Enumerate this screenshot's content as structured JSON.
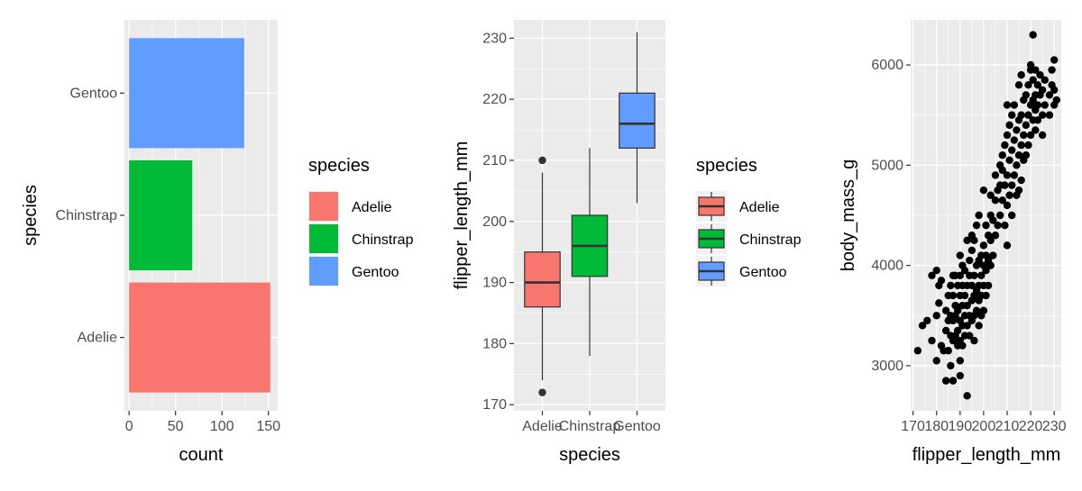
{
  "colors": {
    "Adelie": "#F8766D",
    "Chinstrap": "#00BA38",
    "Gentoo": "#619CFF",
    "panel_bg": "#EBEBEB",
    "grid": "#FFFFFF",
    "point": "#000000"
  },
  "chart_data": [
    {
      "type": "bar",
      "orientation": "horizontal",
      "categories": [
        "Adelie",
        "Chinstrap",
        "Gentoo"
      ],
      "values": [
        152,
        68,
        124
      ],
      "xlabel": "count",
      "ylabel": "species",
      "xlim": [
        -5,
        160
      ],
      "xticks": [
        0,
        50,
        100,
        150
      ],
      "legend": {
        "title": "species",
        "entries": [
          "Adelie",
          "Chinstrap",
          "Gentoo"
        ],
        "placement": "right"
      }
    },
    {
      "type": "boxplot",
      "categories": [
        "Adelie",
        "Chinstrap",
        "Gentoo"
      ],
      "boxes": [
        {
          "name": "Adelie",
          "min": 174,
          "q1": 186,
          "median": 190,
          "q3": 195,
          "max": 208,
          "outliers": [
            210,
            172
          ]
        },
        {
          "name": "Chinstrap",
          "min": 178,
          "q1": 191,
          "median": 196,
          "q3": 201,
          "max": 212,
          "outliers": []
        },
        {
          "name": "Gentoo",
          "min": 203,
          "q1": 212,
          "median": 216,
          "q3": 221,
          "max": 231,
          "outliers": []
        }
      ],
      "xlabel": "species",
      "ylabel": "flipper_length_mm",
      "ylim": [
        169,
        233
      ],
      "yticks": [
        170,
        180,
        190,
        200,
        210,
        220,
        230
      ],
      "legend": {
        "title": "species",
        "entries": [
          "Adelie",
          "Chinstrap",
          "Gentoo"
        ],
        "placement": "right"
      }
    },
    {
      "type": "scatter",
      "xlabel": "flipper_length_mm",
      "ylabel": "body_mass_g",
      "xlim": [
        169,
        233
      ],
      "ylim": [
        2550,
        6450
      ],
      "xticks": [
        170,
        180,
        190,
        200,
        210,
        220,
        230
      ],
      "yticks": [
        3000,
        4000,
        5000,
        6000
      ],
      "points": [
        [
          172,
          3150
        ],
        [
          174,
          3400
        ],
        [
          176,
          3450
        ],
        [
          178,
          3250
        ],
        [
          178,
          3900
        ],
        [
          180,
          3500
        ],
        [
          180,
          3950
        ],
        [
          180,
          3050
        ],
        [
          181,
          3800
        ],
        [
          181,
          3625
        ],
        [
          182,
          3200
        ],
        [
          182,
          3850
        ],
        [
          183,
          3150
        ],
        [
          184,
          3550
        ],
        [
          184,
          3350
        ],
        [
          184,
          2850
        ],
        [
          185,
          3700
        ],
        [
          185,
          3450
        ],
        [
          185,
          3150
        ],
        [
          186,
          3800
        ],
        [
          186,
          3500
        ],
        [
          186,
          3300
        ],
        [
          186,
          3000
        ],
        [
          187,
          3450
        ],
        [
          187,
          3700
        ],
        [
          187,
          3250
        ],
        [
          187,
          3900
        ],
        [
          187,
          2850
        ],
        [
          188,
          3600
        ],
        [
          188,
          3300
        ],
        [
          188,
          3500
        ],
        [
          188,
          3900
        ],
        [
          189,
          3200
        ],
        [
          189,
          3550
        ],
        [
          189,
          3350
        ],
        [
          189,
          3800
        ],
        [
          190,
          3450
        ],
        [
          190,
          3700
        ],
        [
          190,
          3050
        ],
        [
          190,
          3250
        ],
        [
          190,
          3900
        ],
        [
          190,
          4100
        ],
        [
          190,
          2900
        ],
        [
          191,
          3600
        ],
        [
          191,
          3400
        ],
        [
          191,
          3800
        ],
        [
          191,
          3200
        ],
        [
          191,
          4000
        ],
        [
          192,
          3500
        ],
        [
          192,
          3700
        ],
        [
          192,
          3300
        ],
        [
          192,
          3950
        ],
        [
          193,
          3600
        ],
        [
          193,
          3400
        ],
        [
          193,
          3800
        ],
        [
          193,
          2700
        ],
        [
          193,
          4250
        ],
        [
          194,
          3500
        ],
        [
          194,
          3900
        ],
        [
          194,
          3300
        ],
        [
          194,
          4050
        ],
        [
          195,
          3650
        ],
        [
          195,
          3450
        ],
        [
          195,
          3800
        ],
        [
          195,
          4300
        ],
        [
          195,
          4150
        ],
        [
          196,
          3700
        ],
        [
          196,
          3500
        ],
        [
          196,
          3900
        ],
        [
          196,
          3250
        ],
        [
          196,
          4250
        ],
        [
          197,
          3750
        ],
        [
          197,
          3550
        ],
        [
          197,
          4000
        ],
        [
          197,
          4400
        ],
        [
          198,
          3800
        ],
        [
          198,
          3650
        ],
        [
          198,
          4050
        ],
        [
          198,
          3400
        ],
        [
          198,
          4500
        ],
        [
          199,
          3700
        ],
        [
          199,
          3900
        ],
        [
          199,
          4100
        ],
        [
          199,
          3500
        ],
        [
          200,
          3800
        ],
        [
          200,
          4000
        ],
        [
          200,
          4200
        ],
        [
          200,
          4750
        ],
        [
          200,
          3550
        ],
        [
          201,
          3950
        ],
        [
          201,
          4100
        ],
        [
          201,
          4400
        ],
        [
          201,
          3700
        ],
        [
          202,
          4050
        ],
        [
          202,
          4300
        ],
        [
          202,
          3800
        ],
        [
          203,
          4250
        ],
        [
          203,
          4000
        ],
        [
          203,
          4500
        ],
        [
          203,
          4700
        ],
        [
          204,
          4100
        ],
        [
          204,
          4450
        ],
        [
          205,
          4300
        ],
        [
          205,
          4650
        ],
        [
          205,
          4900
        ],
        [
          206,
          4400
        ],
        [
          206,
          4750
        ],
        [
          207,
          4500
        ],
        [
          207,
          4800
        ],
        [
          207,
          5000
        ],
        [
          208,
          4650
        ],
        [
          208,
          4950
        ],
        [
          208,
          5100
        ],
        [
          209,
          4400
        ],
        [
          209,
          4800
        ],
        [
          209,
          5200
        ],
        [
          210,
          4600
        ],
        [
          210,
          4900
        ],
        [
          210,
          5300
        ],
        [
          210,
          5600
        ],
        [
          210,
          4200
        ],
        [
          211,
          4700
        ],
        [
          211,
          5050
        ],
        [
          211,
          5400
        ],
        [
          212,
          4800
        ],
        [
          212,
          5150
        ],
        [
          212,
          5500
        ],
        [
          212,
          4500
        ],
        [
          213,
          4900
        ],
        [
          213,
          5250
        ],
        [
          213,
          5600
        ],
        [
          214,
          5000
        ],
        [
          214,
          5350
        ],
        [
          214,
          4700
        ],
        [
          215,
          5100
        ],
        [
          215,
          5450
        ],
        [
          215,
          5800
        ],
        [
          215,
          4750
        ],
        [
          216,
          5200
        ],
        [
          216,
          5500
        ],
        [
          216,
          4850
        ],
        [
          216,
          5900
        ],
        [
          217,
          5300
        ],
        [
          217,
          5650
        ],
        [
          217,
          5050
        ],
        [
          218,
          5400
        ],
        [
          218,
          5700
        ],
        [
          218,
          5100
        ],
        [
          219,
          5500
        ],
        [
          219,
          5800
        ],
        [
          219,
          5200
        ],
        [
          220,
          5600
        ],
        [
          220,
          5950
        ],
        [
          220,
          5300
        ],
        [
          220,
          6000
        ],
        [
          221,
          5650
        ],
        [
          221,
          5450
        ],
        [
          221,
          5850
        ],
        [
          221,
          6300
        ],
        [
          222,
          5550
        ],
        [
          222,
          5700
        ],
        [
          222,
          5350
        ],
        [
          222,
          5950
        ],
        [
          223,
          5600
        ],
        [
          223,
          5800
        ],
        [
          223,
          5450
        ],
        [
          224,
          5700
        ],
        [
          224,
          5900
        ],
        [
          225,
          5500
        ],
        [
          225,
          5750
        ],
        [
          225,
          5300
        ],
        [
          226,
          5600
        ],
        [
          226,
          5850
        ],
        [
          228,
          5700
        ],
        [
          228,
          5500
        ],
        [
          229,
          5800
        ],
        [
          229,
          5950
        ],
        [
          230,
          5600
        ],
        [
          230,
          5750
        ],
        [
          230,
          6050
        ],
        [
          231,
          5650
        ]
      ]
    }
  ]
}
